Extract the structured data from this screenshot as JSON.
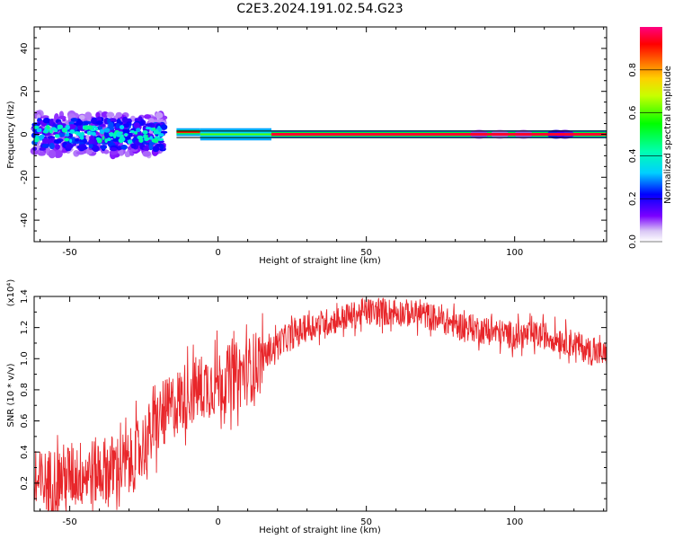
{
  "title": "C2E3.2024.191.02.54.G23",
  "chart_data": [
    {
      "type": "heatmap",
      "xlabel": "Height of straight line (km)",
      "ylabel": "Frequency (Hz)",
      "xlim": [
        -62,
        131
      ],
      "ylim": [
        -50,
        50
      ],
      "xticks": [
        -50,
        0,
        50,
        100
      ],
      "yticks": [
        -40,
        -20,
        0,
        20,
        40
      ],
      "colorbar": {
        "label": "Normalized spectral amplitude",
        "range": [
          0,
          1
        ],
        "ticks": [
          "0.0",
          "0.2",
          "0.4",
          "0.6",
          "0.8"
        ]
      },
      "reference_lines_hz": [
        -1.5,
        1.5
      ],
      "signal": [
        {
          "x_range": [
            -62,
            -18
          ],
          "freq_center": 0,
          "freq_halfwidth": 7,
          "amplitude": 0.35,
          "note": "scattered"
        },
        {
          "x_range": [
            -14,
            -6
          ],
          "freq_center": 1,
          "freq_halfwidth": 1,
          "amplitude": 0.9
        },
        {
          "x_range": [
            -6,
            18
          ],
          "freq_center": 0,
          "freq_halfwidth": 2,
          "amplitude": 0.6
        },
        {
          "x_range": [
            18,
            131
          ],
          "freq_center": 0,
          "freq_halfwidth": 1,
          "amplitude": 0.95
        }
      ]
    },
    {
      "type": "line",
      "xlabel": "Height of straight line (km)",
      "ylabel": "SNR (10 * v/v)",
      "yscale_label": "(x10⁴)",
      "xlim": [
        -62,
        131
      ],
      "ylim": [
        0.02,
        1.4
      ],
      "xticks": [
        -50,
        0,
        50,
        100
      ],
      "yticks": [
        "0.2",
        "0.4",
        "0.6",
        "0.8",
        "1.0",
        "1.2",
        "1.4"
      ],
      "color": "#e8262a",
      "trend": {
        "x": [
          -62,
          -50,
          -40,
          -30,
          -25,
          -20,
          -15,
          -10,
          -5,
          0,
          5,
          10,
          15,
          20,
          25,
          30,
          40,
          50,
          60,
          70,
          80,
          90,
          100,
          110,
          120,
          125,
          131
        ],
        "y": [
          0.18,
          0.25,
          0.28,
          0.32,
          0.45,
          0.6,
          0.7,
          0.78,
          0.82,
          0.85,
          0.88,
          0.92,
          1.0,
          1.1,
          1.15,
          1.2,
          1.25,
          1.3,
          1.3,
          1.28,
          1.22,
          1.18,
          1.15,
          1.15,
          1.1,
          1.05,
          1.02
        ]
      }
    }
  ]
}
